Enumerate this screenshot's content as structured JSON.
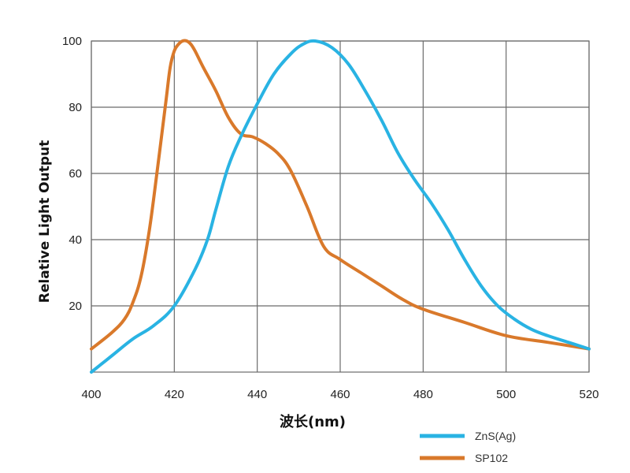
{
  "chart_data": {
    "type": "line",
    "xlabel": "波长(nm)",
    "ylabel": "Relative Light Output",
    "xlim": [
      400,
      520
    ],
    "ylim": [
      0,
      100
    ],
    "x_ticks": [
      "400",
      "420",
      "440",
      "460",
      "480",
      "500",
      "520"
    ],
    "y_ticks": [
      "20",
      "40",
      "60",
      "80",
      "100"
    ],
    "grid": true,
    "legend_position": "bottom-right, outside plot",
    "series": [
      {
        "name": "ZnS(Ag)",
        "color": "#29b3e3",
        "x": [
          400,
          405,
          410,
          415,
          420,
          425,
          428,
          430,
          433,
          436,
          440,
          444,
          448,
          451,
          454,
          458,
          462,
          466,
          470,
          474,
          478,
          482,
          486,
          490,
          494,
          498,
          502,
          506,
          510,
          515,
          520
        ],
        "y": [
          0,
          5,
          10,
          14,
          20,
          31,
          40,
          49,
          62,
          71,
          81,
          90,
          96,
          99,
          100,
          98,
          93,
          85,
          76,
          66,
          58,
          51,
          43,
          34,
          26,
          20,
          16,
          13,
          11,
          9,
          7
        ]
      },
      {
        "name": "SP102",
        "color": "#d9792b",
        "x": [
          400,
          405,
          408,
          410,
          412,
          414,
          416,
          418,
          419,
          420,
          421,
          422,
          423,
          424,
          425,
          427,
          430,
          433,
          436,
          439,
          442,
          445,
          448,
          452,
          456,
          460,
          465,
          470,
          475,
          480,
          490,
          500,
          510,
          520
        ],
        "y": [
          7,
          12,
          16,
          21,
          29,
          43,
          62,
          82,
          92,
          97,
          99,
          100,
          100,
          99,
          97,
          92,
          85,
          77,
          72,
          71,
          69,
          66,
          61,
          50,
          38,
          34,
          30,
          26,
          22,
          19,
          15,
          11,
          9,
          7
        ]
      }
    ]
  }
}
